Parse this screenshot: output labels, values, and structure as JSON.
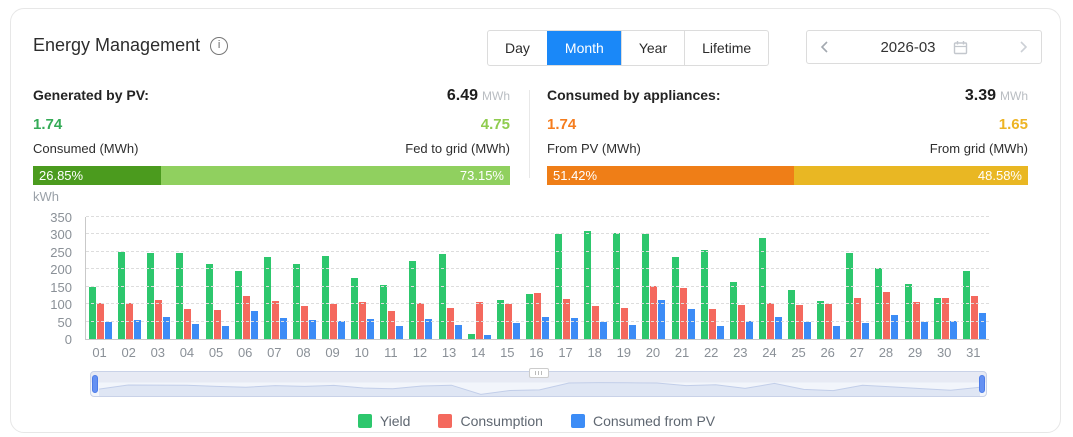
{
  "header": {
    "title": "Energy Management",
    "icons": {
      "info": "i",
      "chevron_left": "chevron-left-icon",
      "chevron_right": "chevron-right-icon",
      "calendar": "calendar-icon"
    },
    "tabs": [
      {
        "label": "Day",
        "active": false
      },
      {
        "label": "Month",
        "active": true
      },
      {
        "label": "Year",
        "active": false
      },
      {
        "label": "Lifetime",
        "active": false
      }
    ],
    "active_tab_color": "#1a88f8",
    "date_picker": {
      "value": "2026-03"
    }
  },
  "stats": {
    "generated": {
      "label": "Generated by PV:",
      "total": "6.49",
      "unit": "MWh",
      "left": {
        "value": "1.74",
        "label": "Consumed (MWh)",
        "pct": "26.85%",
        "pct_value": 26.85,
        "value_color": "#35ab57",
        "bar_color": "#4b9b1e"
      },
      "right": {
        "value": "4.75",
        "label": "Fed to grid (MWh)",
        "pct": "73.15%",
        "pct_value": 73.15,
        "value_color": "#8fcc4f",
        "bar_color": "#90d05f"
      }
    },
    "consumed": {
      "label": "Consumed by appliances:",
      "total": "3.39",
      "unit": "MWh",
      "left": {
        "value": "1.74",
        "label": "From PV (MWh)",
        "pct": "51.42%",
        "pct_value": 51.42,
        "value_color": "#f57d1e",
        "bar_color": "#ef7e17"
      },
      "right": {
        "value": "1.65",
        "label": "From grid (MWh)",
        "pct": "48.58%",
        "pct_value": 48.58,
        "value_color": "#edb424",
        "bar_color": "#e9b723"
      }
    }
  },
  "chart_data": {
    "type": "bar",
    "unit_label": "kWh",
    "ylim": [
      0,
      350
    ],
    "ytick_step": 50,
    "grid": "dashed",
    "legend_position": "bottom",
    "categories": [
      "01",
      "02",
      "03",
      "04",
      "05",
      "06",
      "07",
      "08",
      "09",
      "10",
      "11",
      "12",
      "13",
      "14",
      "15",
      "16",
      "17",
      "18",
      "19",
      "20",
      "21",
      "22",
      "23",
      "24",
      "25",
      "26",
      "27",
      "28",
      "29",
      "30",
      "31"
    ],
    "series": [
      {
        "name": "Yield",
        "color": "#2dc76d",
        "values": [
          148,
          250,
          248,
          246,
          216,
          194,
          235,
          216,
          239,
          175,
          155,
          224,
          245,
          15,
          112,
          128,
          301,
          310,
          305,
          301,
          236,
          255,
          164,
          290,
          140,
          110,
          246,
          203,
          159,
          117,
          196
        ]
      },
      {
        "name": "Consumption",
        "color": "#f4695e",
        "values": [
          104,
          104,
          112,
          86,
          84,
          122,
          108,
          95,
          101,
          106,
          80,
          104,
          88,
          105,
          100,
          131,
          115,
          94,
          88,
          152,
          147,
          87,
          97,
          103,
          97,
          101,
          118,
          136,
          105,
          117,
          122
        ]
      },
      {
        "name": "Consumed from PV",
        "color": "#3c8cf6",
        "values": [
          48,
          54,
          64,
          44,
          38,
          80,
          60,
          54,
          51,
          57,
          38,
          56,
          40,
          12,
          47,
          62,
          60,
          49,
          41,
          112,
          85,
          38,
          52,
          62,
          50,
          38,
          45,
          70,
          50,
          52,
          75
        ]
      }
    ]
  }
}
